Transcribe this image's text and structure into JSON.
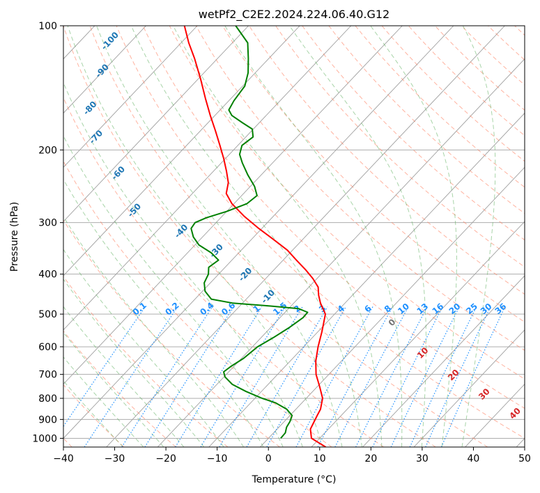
{
  "chart_data": {
    "type": "skew-t",
    "title": "wetPf2_C2E2.2024.224.06.40.G12",
    "xlabel": "Temperature (°C)",
    "ylabel": "Pressure (hPa)",
    "xlim": [
      -40,
      50
    ],
    "ylim": [
      1050,
      100
    ],
    "y_scale": "log",
    "x_ticks": [
      "−40",
      "−30",
      "−20",
      "−10",
      "0",
      "10",
      "20",
      "30",
      "40",
      "50"
    ],
    "y_ticks": [
      "100",
      "200",
      "300",
      "400",
      "500",
      "600",
      "700",
      "800",
      "900",
      "1000"
    ],
    "grid": true,
    "colors": {
      "temperature": "#ff0000",
      "dewpoint": "#008000",
      "isotherms": "#a0a0a0",
      "dry_adiabats": "#ff8060",
      "moist_adiabats": "#60b060",
      "mixing_ratio": "#1e90ff",
      "dry_labels": "#d62728",
      "moist_labels": "#1f77b4"
    },
    "series": [
      {
        "role": "temperature",
        "points": [
          [
            1050,
            12.8
          ],
          [
            1000,
            8.4
          ],
          [
            950,
            6.5
          ],
          [
            920,
            6.0
          ],
          [
            880,
            5.3
          ],
          [
            850,
            4.8
          ],
          [
            800,
            3.2
          ],
          [
            750,
            0.5
          ],
          [
            700,
            -2.5
          ],
          [
            650,
            -5.0
          ],
          [
            600,
            -7.2
          ],
          [
            550,
            -9.3
          ],
          [
            500,
            -11.8
          ],
          [
            470,
            -14.8
          ],
          [
            450,
            -16.6
          ],
          [
            430,
            -18.2
          ],
          [
            410,
            -20.8
          ],
          [
            390,
            -23.9
          ],
          [
            370,
            -27.4
          ],
          [
            350,
            -31.0
          ],
          [
            330,
            -35.6
          ],
          [
            310,
            -40.6
          ],
          [
            290,
            -45.6
          ],
          [
            270,
            -50.4
          ],
          [
            255,
            -53.4
          ],
          [
            240,
            -55.0
          ],
          [
            225,
            -57.5
          ],
          [
            210,
            -60.3
          ],
          [
            195,
            -63.5
          ],
          [
            180,
            -67.0
          ],
          [
            165,
            -70.9
          ],
          [
            150,
            -75.0
          ],
          [
            135,
            -79.4
          ],
          [
            120,
            -84.5
          ],
          [
            110,
            -88.5
          ],
          [
            100,
            -92.5
          ]
        ]
      },
      {
        "role": "dewpoint",
        "points": [
          [
            1000,
            2.4
          ],
          [
            970,
            2.3
          ],
          [
            940,
            1.5
          ],
          [
            910,
            1.1
          ],
          [
            880,
            0.4
          ],
          [
            850,
            -1.8
          ],
          [
            820,
            -5.2
          ],
          [
            800,
            -8.6
          ],
          [
            770,
            -13.0
          ],
          [
            740,
            -17.0
          ],
          [
            710,
            -19.8
          ],
          [
            690,
            -21.0
          ],
          [
            670,
            -20.6
          ],
          [
            640,
            -19.6
          ],
          [
            600,
            -19.0
          ],
          [
            570,
            -17.6
          ],
          [
            540,
            -16.4
          ],
          [
            510,
            -15.5
          ],
          [
            495,
            -15.6
          ],
          [
            485,
            -18.0
          ],
          [
            478,
            -24.0
          ],
          [
            470,
            -32.0
          ],
          [
            460,
            -36.8
          ],
          [
            440,
            -39.5
          ],
          [
            420,
            -41.2
          ],
          [
            400,
            -42.0
          ],
          [
            385,
            -43.2
          ],
          [
            370,
            -42.6
          ],
          [
            355,
            -45.4
          ],
          [
            340,
            -49.2
          ],
          [
            325,
            -51.8
          ],
          [
            310,
            -53.8
          ],
          [
            300,
            -54.1
          ],
          [
            292,
            -52.8
          ],
          [
            282,
            -50.0
          ],
          [
            270,
            -47.5
          ],
          [
            258,
            -47.0
          ],
          [
            245,
            -49.2
          ],
          [
            230,
            -52.6
          ],
          [
            215,
            -55.9
          ],
          [
            205,
            -58.0
          ],
          [
            195,
            -59.2
          ],
          [
            186,
            -58.6
          ],
          [
            178,
            -60.2
          ],
          [
            172,
            -63.2
          ],
          [
            165,
            -66.7
          ],
          [
            160,
            -68.3
          ],
          [
            152,
            -69.0
          ],
          [
            140,
            -69.6
          ],
          [
            130,
            -71.4
          ],
          [
            120,
            -74.0
          ],
          [
            110,
            -77.0
          ],
          [
            100,
            -82.5
          ]
        ]
      }
    ],
    "dry_adiabat_labels": [
      "0",
      "10",
      "20",
      "30",
      "40"
    ],
    "moist_adiabat_labels": [
      "-100",
      "-90",
      "-80",
      "-70",
      "-60",
      "-50",
      "-40",
      "-30",
      "-20",
      "-10",
      "0"
    ],
    "mixing_ratio_labels": [
      "0.1",
      "0.2",
      "0.4",
      "0.6",
      "1",
      "1.5",
      "2",
      "3",
      "4",
      "6",
      "8",
      "10",
      "13",
      "16",
      "20",
      "25",
      "30",
      "36"
    ]
  }
}
